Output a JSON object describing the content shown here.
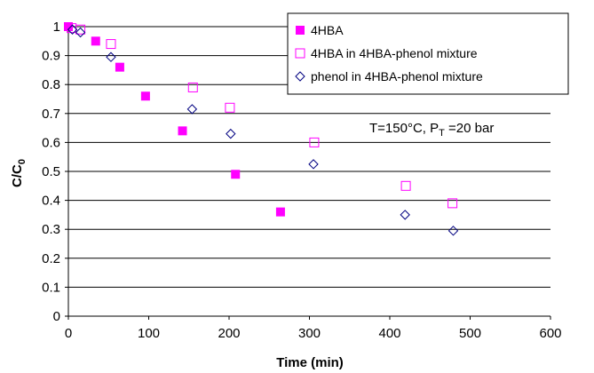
{
  "chart_data": {
    "type": "scatter",
    "title": "",
    "xlabel": "Time (min)",
    "ylabel_main": "C/C",
    "ylabel_sub": "0",
    "xlim": [
      0,
      600
    ],
    "ylim": [
      0,
      1
    ],
    "xticks": [
      0,
      100,
      200,
      300,
      400,
      500,
      600
    ],
    "yticks": [
      0,
      0.1,
      0.2,
      0.3,
      0.4,
      0.5,
      0.6,
      0.7,
      0.8,
      0.9,
      1
    ],
    "grid": "horizontal",
    "legend_position": "top-right",
    "annotation": {
      "prefix": "T=150°C, P",
      "sub": "T",
      "suffix": " =20 bar"
    },
    "series": [
      {
        "name": "4HBA",
        "marker": "filled-square",
        "color": "#ff00ff",
        "points": [
          [
            0,
            1.0
          ],
          [
            34,
            0.95
          ],
          [
            64,
            0.86
          ],
          [
            96,
            0.76
          ],
          [
            142,
            0.64
          ],
          [
            208,
            0.49
          ],
          [
            264,
            0.36
          ]
        ]
      },
      {
        "name": "4HBA in 4HBA-phenol mixture",
        "marker": "open-square",
        "color": "#ff00ff",
        "points": [
          [
            4,
            0.995
          ],
          [
            15,
            0.99
          ],
          [
            53,
            0.94
          ],
          [
            155,
            0.79
          ],
          [
            201,
            0.72
          ],
          [
            306,
            0.6
          ],
          [
            420,
            0.45
          ],
          [
            478,
            0.39
          ]
        ]
      },
      {
        "name": "phenol in 4HBA-phenol mixture",
        "marker": "open-diamond",
        "color": "#000080",
        "points": [
          [
            5,
            0.99
          ],
          [
            15,
            0.98
          ],
          [
            53,
            0.895
          ],
          [
            154,
            0.715
          ],
          [
            202,
            0.63
          ],
          [
            305,
            0.525
          ],
          [
            419,
            0.35
          ],
          [
            479,
            0.295
          ]
        ]
      }
    ]
  }
}
